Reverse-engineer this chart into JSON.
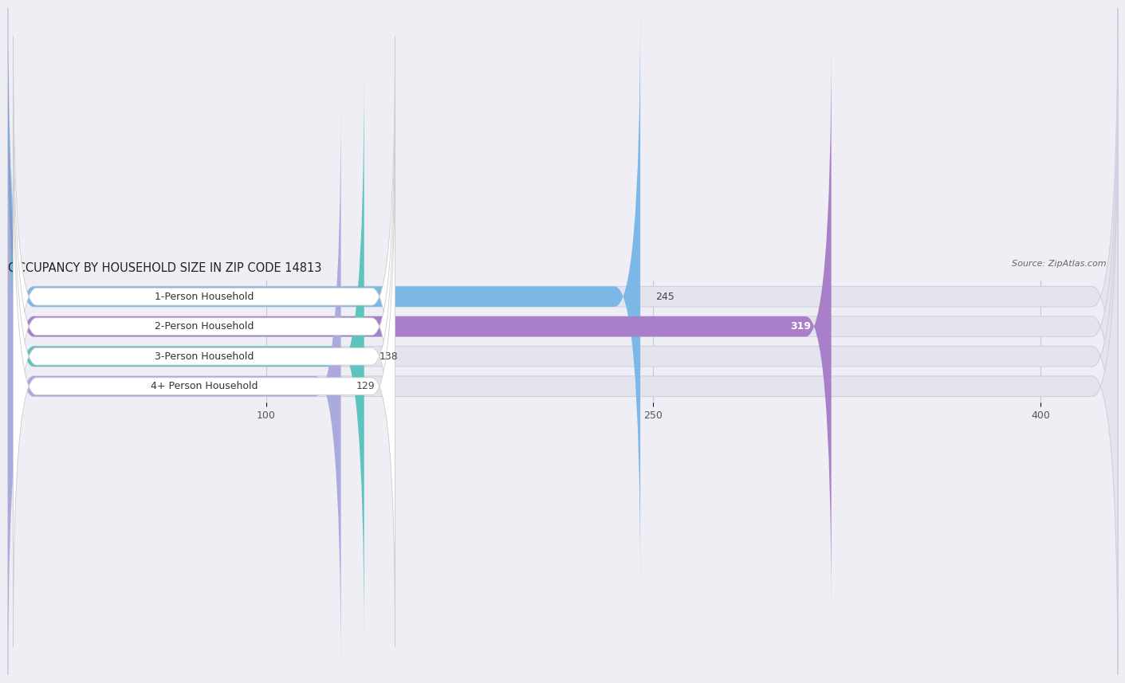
{
  "categories": [
    "1-Person Household",
    "2-Person Household",
    "3-Person Household",
    "4+ Person Household"
  ],
  "values": [
    245,
    319,
    138,
    129
  ],
  "bar_colors": [
    "#7bb8e8",
    "#a87fc8",
    "#5ec4c0",
    "#aaaade"
  ],
  "value_label_white": [
    false,
    true,
    false,
    false
  ],
  "title": "OCCUPANCY BY HOUSEHOLD SIZE IN ZIP CODE 14813",
  "source": "Source: ZipAtlas.com",
  "xlim": [
    0,
    430
  ],
  "xticks": [
    100,
    250,
    400
  ],
  "title_fontsize": 10.5,
  "bar_label_fontsize": 9,
  "value_label_fontsize": 9,
  "background_color": "#eeeef4",
  "bar_background_color": "#e4e4ee",
  "bar_bg_edge_color": "#d0d0e0",
  "label_box_color": "#ffffff",
  "label_box_edge": "#cccccc"
}
